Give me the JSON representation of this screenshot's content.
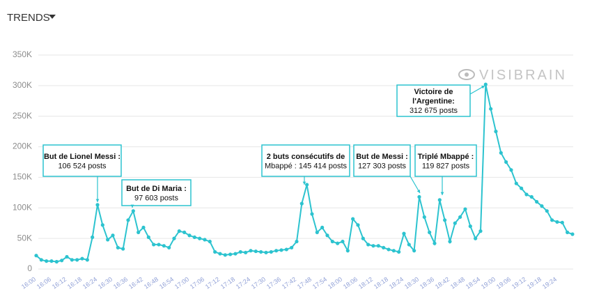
{
  "chart_data": {
    "type": "line",
    "title": "TRENDS",
    "watermark": "VISIBRAIN",
    "categories": [
      "16:00",
      null,
      null,
      "16:06",
      null,
      null,
      "16:12",
      null,
      null,
      "16:18",
      null,
      null,
      "16:24",
      null,
      null,
      "16:30",
      null,
      null,
      "16:36",
      null,
      null,
      "16:42",
      null,
      null,
      "16:48",
      null,
      null,
      "16:54",
      null,
      null,
      "17:00",
      null,
      null,
      "17:06",
      null,
      null,
      "17:12",
      null,
      null,
      "17:18",
      null,
      null,
      "17:24",
      null,
      null,
      "17:30",
      null,
      null,
      "17:36",
      null,
      null,
      "17:42",
      null,
      null,
      "17:48",
      null,
      null,
      "17:54",
      null,
      null,
      "18:00",
      null,
      null,
      "18:06",
      null,
      null,
      "18:12",
      null,
      null,
      "18:18",
      null,
      null,
      "18:24",
      null,
      null,
      "18:30",
      null,
      null,
      "18:36",
      null,
      null,
      "18:42",
      null,
      null,
      "18:48",
      null,
      null,
      "18:54",
      null,
      null,
      "19:00",
      null,
      null,
      "19:06",
      null,
      null,
      "19:12",
      null,
      null,
      "19:18",
      null,
      null,
      "19:24",
      null,
      null,
      null
    ],
    "values": [
      22000,
      15000,
      13000,
      13000,
      12000,
      14000,
      20000,
      15000,
      15000,
      17000,
      15000,
      52000,
      105000,
      72000,
      48000,
      55000,
      35000,
      33000,
      80000,
      95000,
      60000,
      68000,
      52000,
      40000,
      40000,
      38000,
      35000,
      50000,
      62000,
      60000,
      55000,
      52000,
      50000,
      48000,
      45000,
      28000,
      25000,
      23000,
      24000,
      25000,
      28000,
      27000,
      30000,
      29000,
      28000,
      27000,
      28000,
      30000,
      31000,
      32000,
      35000,
      45000,
      107000,
      138000,
      90000,
      60000,
      68000,
      55000,
      45000,
      42000,
      45000,
      30000,
      82000,
      72000,
      50000,
      40000,
      38000,
      38000,
      35000,
      32000,
      30000,
      28000,
      58000,
      40000,
      30000,
      118000,
      85000,
      60000,
      42000,
      113000,
      80000,
      45000,
      75000,
      85000,
      98000,
      70000,
      50000,
      62000,
      302000,
      262000,
      225000,
      190000,
      175000,
      162000,
      140000,
      132000,
      122000,
      118000,
      110000,
      103000,
      95000,
      80000,
      77000,
      76000,
      60000,
      57000
    ],
    "color": "#2cc3cf",
    "ylim": [
      0,
      350000
    ],
    "yticks": [
      0,
      {
        "value": 50000,
        "label": "50K"
      },
      {
        "value": 100000,
        "label": "100K"
      },
      {
        "value": 150000,
        "label": "150K"
      },
      {
        "value": 200000,
        "label": "200K"
      },
      {
        "value": 250000,
        "label": "250K"
      },
      {
        "value": 300000,
        "label": "300K"
      },
      {
        "value": 350000,
        "label": "350K"
      }
    ],
    "grid": true,
    "annotations": [
      {
        "lines": [
          "But de Lionel Messi :",
          "106 524 posts"
        ]
      },
      {
        "lines": [
          "But de Di Maria :",
          "97 603 posts"
        ]
      },
      {
        "lines": [
          "2 buts consécutifs de",
          "Mbappé : 145 414 posts"
        ]
      },
      {
        "lines": [
          "But de Messi :",
          "127 303 posts"
        ]
      },
      {
        "lines": [
          "Triplé Mbappé :",
          "119 827 posts"
        ]
      },
      {
        "lines": [
          "Victoire de",
          "l'Argentine:",
          "312 675 posts"
        ]
      }
    ]
  }
}
